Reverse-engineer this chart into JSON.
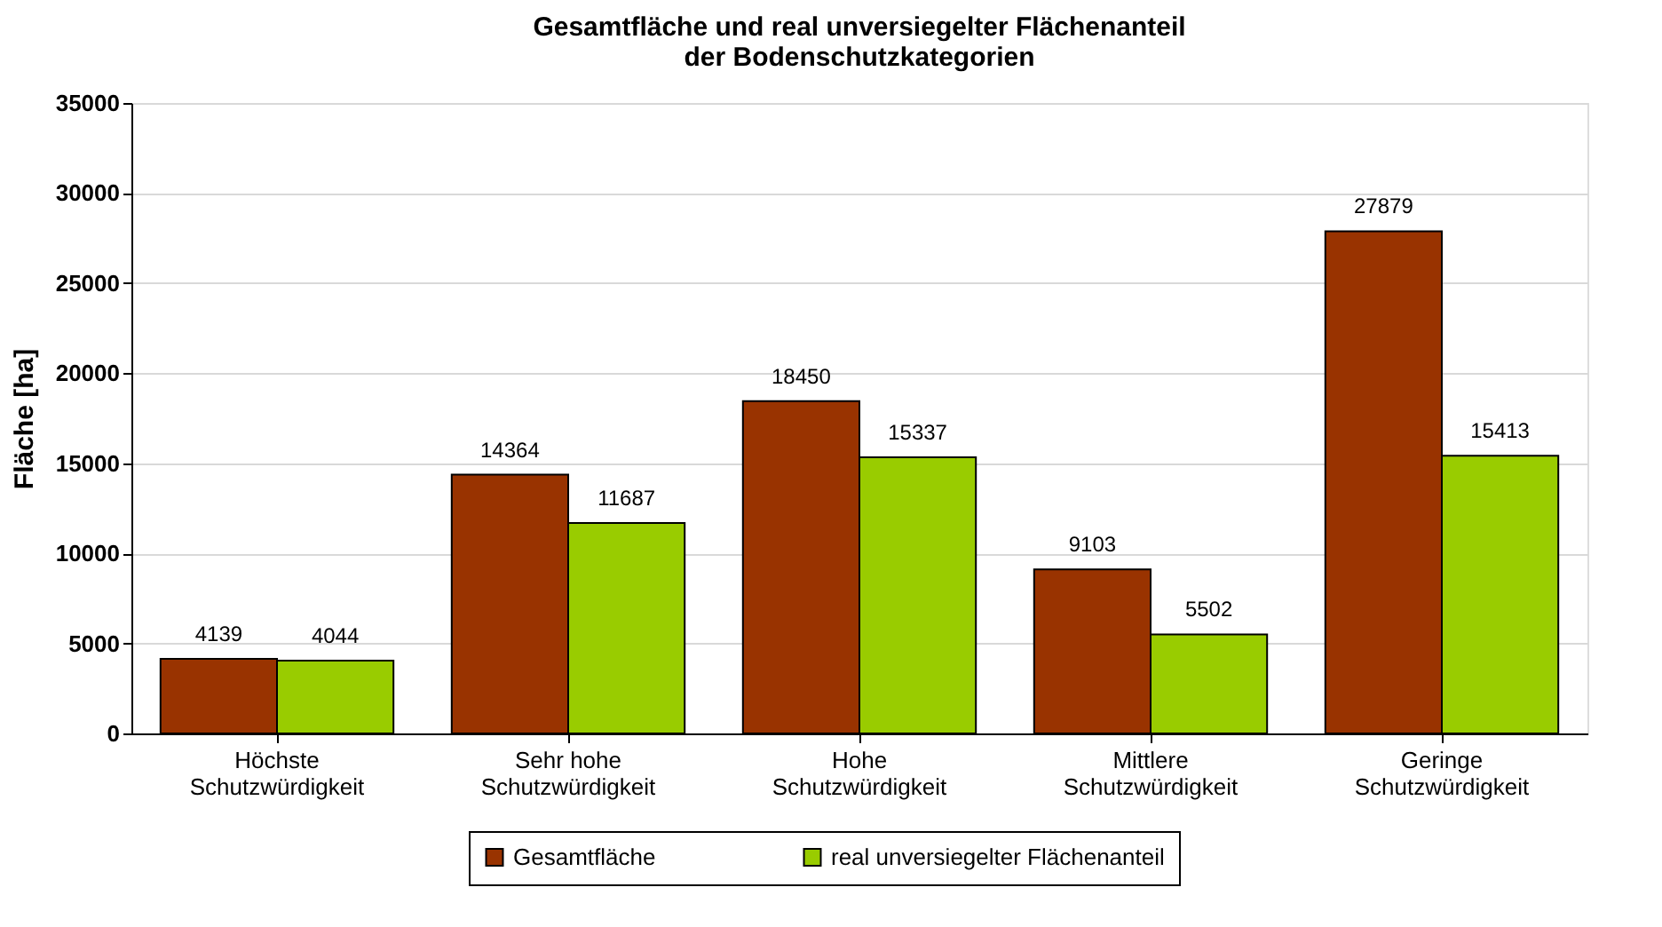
{
  "chart_data": {
    "type": "bar",
    "title": "Gesamtfläche und real unversiegelter Flächenanteil\nder Bodenschutzkategorien",
    "ylabel": "Fläche [ha]",
    "categories": [
      "Höchste\nSchutzwürdigkeit",
      "Sehr hohe\nSchutzwürdigkeit",
      "Hohe\nSchutzwürdigkeit",
      "Mittlere\nSchutzwürdigkeit",
      "Geringe\nSchutzwürdigkeit"
    ],
    "series": [
      {
        "name": "Gesamtfläche",
        "color": "#993300",
        "values": [
          4139,
          14364,
          18450,
          9103,
          27879
        ]
      },
      {
        "name": "real unversiegelter Flächenanteil",
        "color": "#99cc00",
        "values": [
          4044,
          11687,
          15337,
          5502,
          15413
        ]
      }
    ],
    "ylim": [
      0,
      35000
    ],
    "yticks": [
      0,
      5000,
      10000,
      15000,
      20000,
      25000,
      30000,
      35000
    ],
    "grid": "y",
    "legend": "bottom",
    "data_labels": true
  }
}
